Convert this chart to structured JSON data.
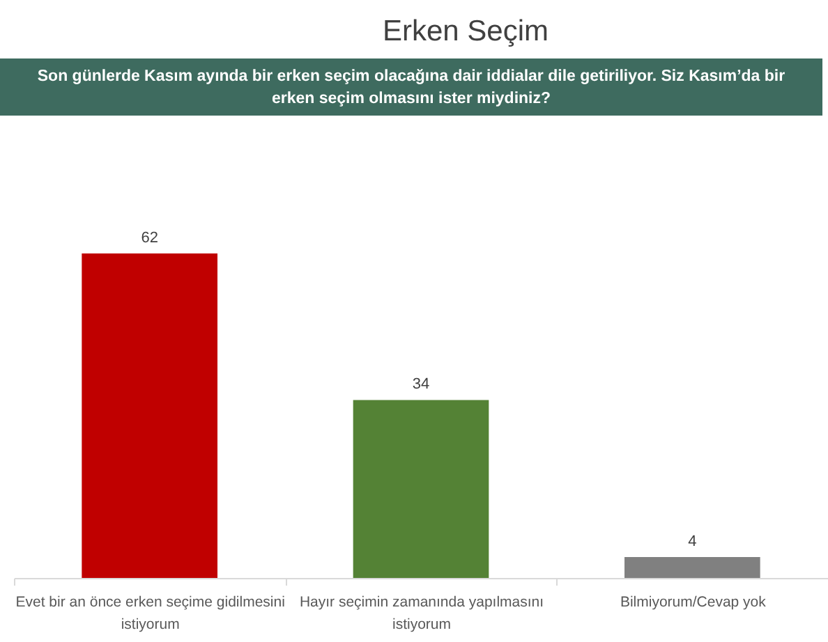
{
  "chart_data": {
    "type": "bar",
    "title": "Erken Seçim",
    "subtitle": "Son günlerde Kasım ayında bir erken seçim olacağına dair iddialar dile getiriliyor. Siz Kasım’da bir erken seçim olmasını ister miydiniz?",
    "categories": [
      "Evet bir an önce erken seçime gidilmesini istiyorum",
      "Hayır seçimin zamanında yapılmasını istiyorum",
      "Bilmiyorum/Cevap yok"
    ],
    "values": [
      62,
      34,
      4
    ],
    "colors": [
      "#c00000",
      "#548235",
      "#808080"
    ],
    "data_labels": true,
    "tick_labels": "x"
  }
}
